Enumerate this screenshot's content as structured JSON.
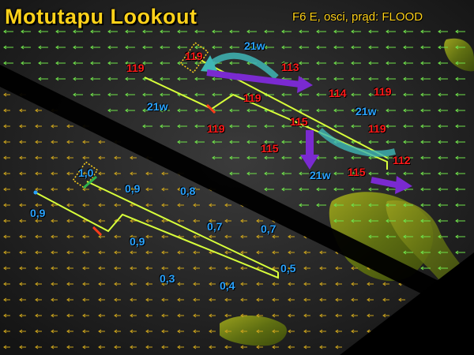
{
  "title": "Motutapu Lookout",
  "subtitle": "F6 E, osci, prąd: FLOOD",
  "colors": {
    "title": "#ffd21a",
    "course": "#d8ff3a",
    "red_labels": "#ff1a1a",
    "blue_labels": "#2aa3ff",
    "wind_arrows": "#c9a21c",
    "current_arrows": "#6fe14a",
    "purple_arrow": "#7a2ad0",
    "teal_arrow": "#3fb6b6",
    "land": "#7a8a1c"
  },
  "icons": [
    "start-line-icon",
    "layline-marker-icon",
    "current-arrow-icon",
    "wind-arrow-icon"
  ],
  "upper_course": {
    "red_labels": [
      "119",
      "119",
      "113",
      "119",
      "114",
      "119",
      "119",
      "115",
      "119",
      "115",
      "115",
      "112"
    ],
    "blue_labels": [
      "21w",
      "21w",
      "21w",
      "21w"
    ]
  },
  "lower_course": {
    "blue_labels": [
      "1,0",
      "0,9",
      "0,8",
      "0,9",
      "0,7",
      "0,7",
      "0,9",
      "0,5",
      "0,3",
      "0,4"
    ]
  }
}
